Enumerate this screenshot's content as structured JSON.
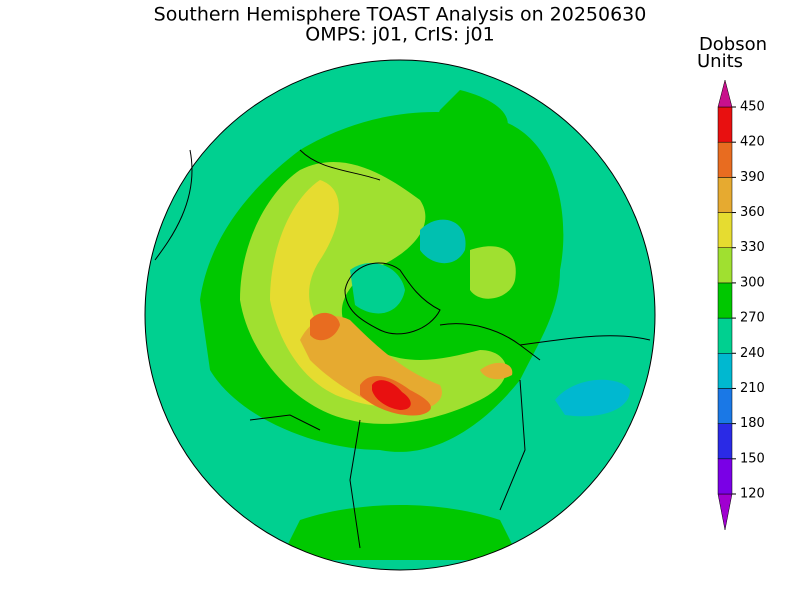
{
  "map": {
    "title": "Southern Hemisphere TOAST Analysis on 20250630",
    "subtitle": "OMPS: j01, CrIS: j01",
    "legend": {
      "title": [
        "Dobson",
        "Units"
      ],
      "ticks": [
        120,
        150,
        180,
        210,
        240,
        270,
        300,
        330,
        360,
        390,
        420,
        450
      ],
      "colors": [
        "#a000d0",
        "#7a00e6",
        "#2a2ae6",
        "#1a78e6",
        "#00b8d0",
        "#00d090",
        "#00c800",
        "#a0e030",
        "#e6dc30",
        "#e6aa30",
        "#e86c20",
        "#e81010",
        "#c8108c"
      ]
    }
  }
}
